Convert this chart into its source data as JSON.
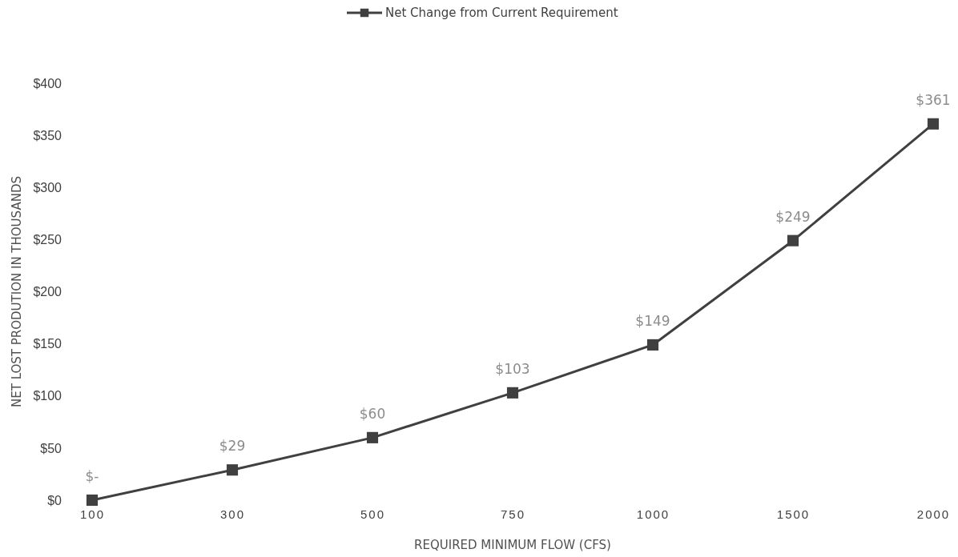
{
  "chart_data": {
    "type": "line",
    "xlabel": "REQUIRED MINIMUM FLOW (CFS)",
    "ylabel": "NET LOST PRODUTION IN THOUSANDS",
    "categories": [
      "100",
      "300",
      "500",
      "750",
      "1000",
      "1500",
      "2000"
    ],
    "series": [
      {
        "name": "Net Change from Current Requirement",
        "color": "#404040",
        "values": [
          0,
          29,
          60,
          103,
          149,
          249,
          361
        ],
        "value_labels": [
          "$-",
          "$29",
          "$60",
          "$103",
          "$149",
          "$249",
          "$361"
        ]
      }
    ],
    "ylim": [
      0,
      400
    ],
    "yticks": [
      {
        "value": 0,
        "label": "$0"
      },
      {
        "value": 50,
        "label": "$50"
      },
      {
        "value": 100,
        "label": "$100"
      },
      {
        "value": 150,
        "label": "$150"
      },
      {
        "value": 200,
        "label": "$200"
      },
      {
        "value": 250,
        "label": "$250"
      },
      {
        "value": 300,
        "label": "$300"
      },
      {
        "value": 350,
        "label": "$350"
      },
      {
        "value": 400,
        "label": "$400"
      }
    ],
    "legend": "top",
    "marker": "square",
    "line_style": "solid"
  }
}
